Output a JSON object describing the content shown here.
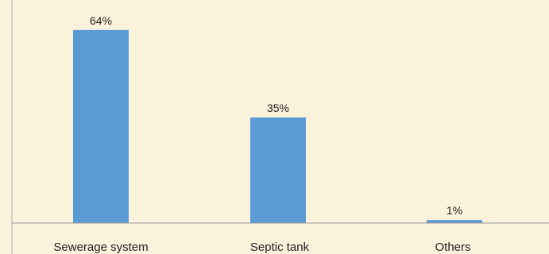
{
  "chart_data": {
    "type": "bar",
    "title": "",
    "xlabel": "",
    "ylabel": "",
    "categories": [
      "Sewerage system",
      "Septic tank",
      "Others"
    ],
    "values": [
      64,
      35,
      1
    ],
    "data_labels": [
      "64%",
      "35%",
      "1%"
    ],
    "unit": "%",
    "ylim": [
      0,
      70
    ],
    "grid": false,
    "legend": "none"
  },
  "colors": {
    "background": "#fbf2dc",
    "bar": "#5b9bd5",
    "axis": "#9a9a9a",
    "text": "#222222"
  }
}
